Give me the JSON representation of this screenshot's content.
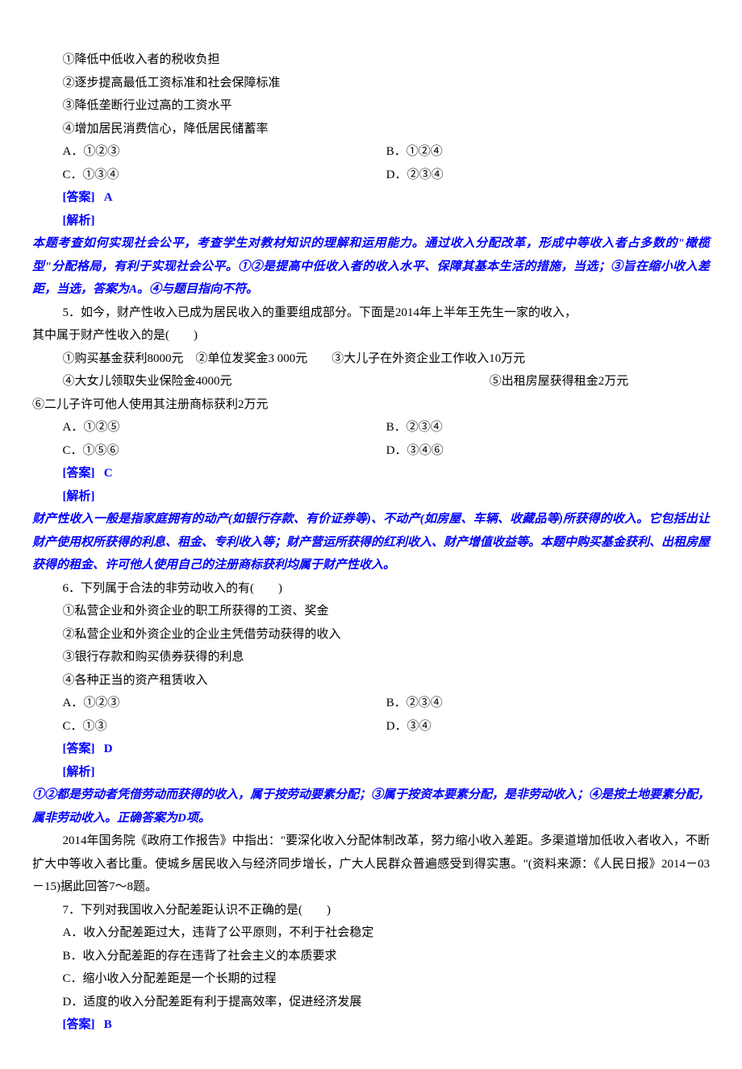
{
  "colors": {
    "text": "#000000",
    "answer": "#0000ff",
    "background": "#ffffff"
  },
  "typography": {
    "font_family": "SimSun",
    "font_size_pt": 11,
    "line_height": 1.9,
    "answer_weight": "bold",
    "analysis_style": "italic"
  },
  "q4": {
    "opts": {
      "o1": "①降低中低收入者的税收负担",
      "o2": "②逐步提高最低工资标准和社会保障标准",
      "o3": "③降低垄断行业过高的工资水平",
      "o4": "④增加居民消费信心，降低居民储蓄率"
    },
    "choices": {
      "a": "A．①②③",
      "b": "B．①②④",
      "c": "C．①③④",
      "d": "D．②③④"
    },
    "answer_label": "[答案]",
    "answer": "A",
    "analysis_label": "[解析]",
    "analysis": "本题考查如何实现社会公平，考查学生对教材知识的理解和运用能力。通过收入分配改革，形成中等收入者占多数的\"橄榄型\"分配格局，有利于实现社会公平。①②是提高中低收入者的收入水平、保障其基本生活的措施，当选；③旨在缩小收入差距，当选，答案为A。④与题目指向不符。"
  },
  "q5": {
    "stem1": "5．如今，财产性收入已成为居民收入的重要组成部分。下面是2014年上半年王先生一家的收入，",
    "stem2": "其中属于财产性收入的是(　　)",
    "opts_line1": "①购买基金获利8000元　②单位发奖金3 000元　　③大儿子在外资企业工作收入10万元",
    "opts_line2a": "④大女儿领取失业保险金4000元",
    "opts_line2b": "⑤出租房屋获得租金2万元",
    "opts_line3": "⑥二儿子许可他人使用其注册商标获利2万元",
    "choices": {
      "a": "A．①②⑤",
      "b": "B．②③④",
      "c": "C．①⑤⑥",
      "d": "D．③④⑥"
    },
    "answer_label": "[答案]",
    "answer": "C",
    "analysis_label": "[解析]",
    "analysis": "财产性收入一般是指家庭拥有的动产(如银行存款、有价证券等)、不动产(如房屋、车辆、收藏品等)所获得的收入。它包括出让财产使用权所获得的利息、租金、专利收入等；财产营运所获得的红利收入、财产增值收益等。本题中购买基金获利、出租房屋获得的租金、许可他人使用自己的注册商标获利均属于财产性收入。"
  },
  "q6": {
    "stem": "6．下列属于合法的非劳动收入的有(　　)",
    "opts": {
      "o1": "①私营企业和外资企业的职工所获得的工资、奖金",
      "o2": "②私营企业和外资企业的企业主凭借劳动获得的收入",
      "o3": "③银行存款和购买债券获得的利息",
      "o4": "④各种正当的资产租赁收入"
    },
    "choices": {
      "a": "A．①②③",
      "b": "B．②③④",
      "c": "C．①③",
      "d": "D．③④"
    },
    "answer_label": "[答案]",
    "answer": "D",
    "analysis_label": "[解析]",
    "analysis": "①②都是劳动者凭借劳动而获得的收入，属于按劳动要素分配；③属于按资本要素分配，是非劳动收入；④是按土地要素分配，属非劳动收入。正确答案为D项。"
  },
  "passage": {
    "text": "2014年国务院《政府工作报告》中指出：\"要深化收入分配体制改革，努力缩小收入差距。多渠道增加低收入者收入，不断扩大中等收入者比重。使城乡居民收入与经济同步增长，广大人民群众普遍感受到得实惠。\"(资料来源：《人民日报》2014－03－15)据此回答7～8题。"
  },
  "q7": {
    "stem": "7．下列对我国收入分配差距认识不正确的是(　　)",
    "choices": {
      "a": "A．收入分配差距过大，违背了公平原则，不利于社会稳定",
      "b": "B．收入分配差距的存在违背了社会主义的本质要求",
      "c": "C．缩小收入分配差距是一个长期的过程",
      "d": "D．适度的收入分配差距有利于提高效率，促进经济发展"
    },
    "answer_label": "[答案]",
    "answer": "B"
  }
}
